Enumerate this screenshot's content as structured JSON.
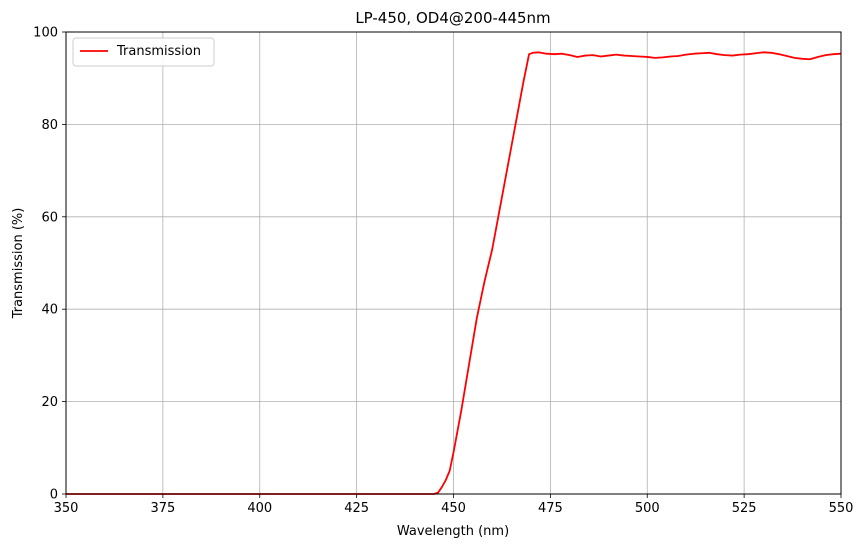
{
  "chart_data": {
    "type": "line",
    "title": "LP-450, OD4@200-445nm",
    "xlabel": "Wavelength (nm)",
    "ylabel": "Transmission (%)",
    "xlim": [
      350,
      550
    ],
    "ylim": [
      0,
      100
    ],
    "xticks": [
      350,
      375,
      400,
      425,
      450,
      475,
      500,
      525,
      550
    ],
    "yticks": [
      0,
      20,
      40,
      60,
      80,
      100
    ],
    "grid": true,
    "legend_position": "top-left",
    "series": [
      {
        "name": "Transmission",
        "color": "#ff0000",
        "x": [
          350,
          400,
          445,
          446,
          447,
          448,
          449,
          450,
          452,
          454,
          456,
          458,
          460,
          462,
          464,
          466,
          468,
          469.5,
          470.5,
          472,
          474,
          476,
          478,
          480,
          482,
          484,
          486,
          488,
          490,
          492,
          494,
          496,
          498,
          500,
          502,
          504,
          506,
          508,
          510,
          512,
          514,
          516,
          518,
          520,
          522,
          524,
          526,
          528,
          530,
          532,
          534,
          536,
          538,
          540,
          542,
          544,
          546,
          548,
          550
        ],
        "y": [
          0,
          0,
          0,
          0.3,
          1.5,
          3,
          5,
          9,
          18,
          28,
          38,
          46,
          53,
          62,
          71,
          80,
          89,
          95.2,
          95.5,
          95.6,
          95.3,
          95.2,
          95.3,
          95,
          94.6,
          94.9,
          95,
          94.7,
          94.9,
          95.1,
          94.9,
          94.8,
          94.7,
          94.6,
          94.4,
          94.5,
          94.7,
          94.8,
          95.1,
          95.3,
          95.4,
          95.5,
          95.2,
          95,
          94.9,
          95.1,
          95.2,
          95.4,
          95.6,
          95.5,
          95.2,
          94.8,
          94.4,
          94.2,
          94.1,
          94.6,
          95,
          95.2,
          95.3
        ]
      }
    ]
  }
}
